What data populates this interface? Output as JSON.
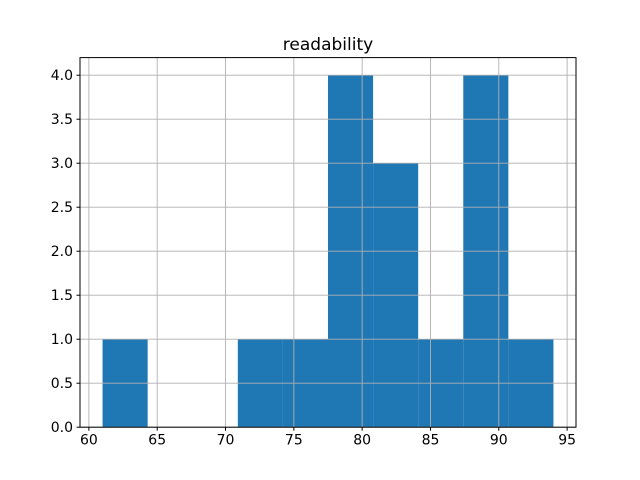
{
  "chart_data": {
    "type": "histogram",
    "title": "readability",
    "bin_edges": [
      61.0,
      64.3,
      67.6,
      70.9,
      74.2,
      77.5,
      80.8,
      84.1,
      87.4,
      90.7,
      94.0
    ],
    "counts": [
      1,
      0,
      0,
      1,
      1,
      4,
      3,
      1,
      4,
      1
    ],
    "total_count": 16,
    "xlabel": "",
    "ylabel": "",
    "xtick_values": [
      60,
      65,
      70,
      75,
      80,
      85,
      90,
      95
    ],
    "xtick_labels": [
      "60",
      "65",
      "70",
      "75",
      "80",
      "85",
      "90",
      "95"
    ],
    "ytick_values": [
      0.0,
      0.5,
      1.0,
      1.5,
      2.0,
      2.5,
      3.0,
      3.5,
      4.0
    ],
    "ytick_labels": [
      "0.0",
      "0.5",
      "1.0",
      "1.5",
      "2.0",
      "2.5",
      "3.0",
      "3.5",
      "4.0"
    ],
    "xlim": [
      59.35,
      95.65
    ],
    "ylim": [
      0,
      4.2
    ],
    "grid": true,
    "grid_over_bars": true,
    "legend_position": "none",
    "bar_color": "#1f77b4",
    "grid_color": "#b0b0b0",
    "spine_color": "#000000",
    "background_color": "#ffffff"
  }
}
